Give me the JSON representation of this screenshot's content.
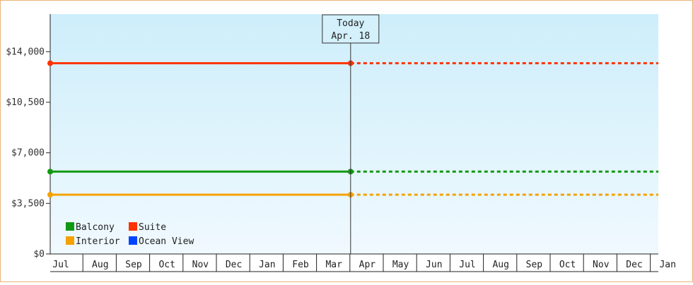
{
  "chart_data": {
    "type": "line",
    "title": "",
    "xlabel": "",
    "ylabel": "",
    "months": [
      "Jul",
      "Aug",
      "Sep",
      "Oct",
      "Nov",
      "Dec",
      "Jan",
      "Feb",
      "Mar",
      "Apr",
      "May",
      "Jun",
      "Jul",
      "Aug",
      "Sep",
      "Oct",
      "Nov",
      "Dec",
      "Jan"
    ],
    "y_ticks": [
      {
        "value": 0,
        "label": "$0"
      },
      {
        "value": 3500,
        "label": "$3,500"
      },
      {
        "value": 7000,
        "label": "$7,000"
      },
      {
        "value": 10500,
        "label": "$10,500"
      },
      {
        "value": 14000,
        "label": "$14,000"
      }
    ],
    "ylim": [
      0,
      16600
    ],
    "today": {
      "line1": "Today",
      "line2": "Apr. 18",
      "x": 9.0
    },
    "series": [
      {
        "name": "Suite",
        "color": "#ff3300",
        "value": 13200,
        "start_x": 0,
        "end_x": 9.0
      },
      {
        "name": "Balcony",
        "color": "#119911",
        "value": 5700,
        "start_x": 0,
        "end_x": 9.0
      },
      {
        "name": "Interior",
        "color": "#f5a100",
        "value": 4100,
        "start_x": 0,
        "end_x": 9.0
      },
      {
        "name": "Ocean View",
        "color": "#0044ff",
        "value": null,
        "start_x": null,
        "end_x": null
      }
    ],
    "legend": {
      "placement": "bottom-left",
      "items": [
        {
          "name": "Balcony",
          "color": "#119911"
        },
        {
          "name": "Suite",
          "color": "#ff3300"
        },
        {
          "name": "Interior",
          "color": "#f5a100"
        },
        {
          "name": "Ocean View",
          "color": "#0044ff"
        }
      ]
    },
    "grid": false
  }
}
